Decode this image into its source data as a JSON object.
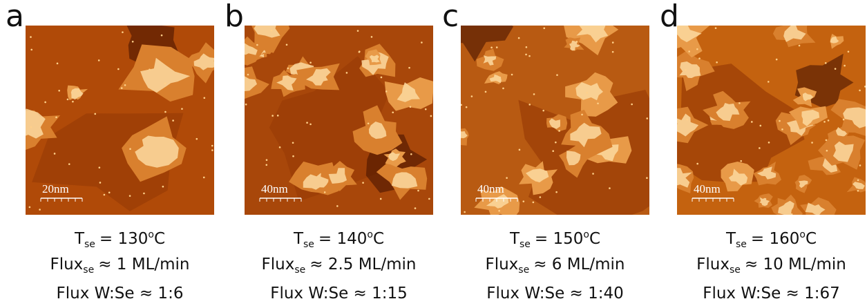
{
  "panels": [
    {
      "label": "a",
      "scale_bar": "20nm",
      "temperature": {
        "symbol": "T",
        "subscript": "se",
        "text": "= 130",
        "superscript": "o",
        "unit": "C"
      },
      "flux": {
        "symbol": "Flux",
        "subscript": "se",
        "text": "≈ 1 ML/min"
      },
      "ratio": "Flux W:Se ≈ 1:6"
    },
    {
      "label": "b",
      "scale_bar": "40nm",
      "temperature": {
        "symbol": "T",
        "subscript": "se",
        "text": "= 140",
        "superscript": "o",
        "unit": "C"
      },
      "flux": {
        "symbol": "Flux",
        "subscript": "se",
        "text": "≈ 2.5 ML/min"
      },
      "ratio": "Flux W:Se ≈ 1:15"
    },
    {
      "label": "c",
      "scale_bar": "40nm",
      "temperature": {
        "symbol": "T",
        "subscript": "se",
        "text": "= 150",
        "superscript": "o",
        "unit": "C"
      },
      "flux": {
        "symbol": "Flux",
        "subscript": "se",
        "text": "≈ 6 ML/min"
      },
      "ratio": "Flux W:Se ≈ 1:40"
    },
    {
      "label": "d",
      "scale_bar": "40nm",
      "temperature": {
        "symbol": "T",
        "subscript": "se",
        "text": "= 160",
        "superscript": "o",
        "unit": "C"
      },
      "flux": {
        "symbol": "Flux",
        "subscript": "se",
        "text": "≈ 10 ML/min"
      },
      "ratio": "Flux W:Se ≈ 1:67"
    }
  ]
}
